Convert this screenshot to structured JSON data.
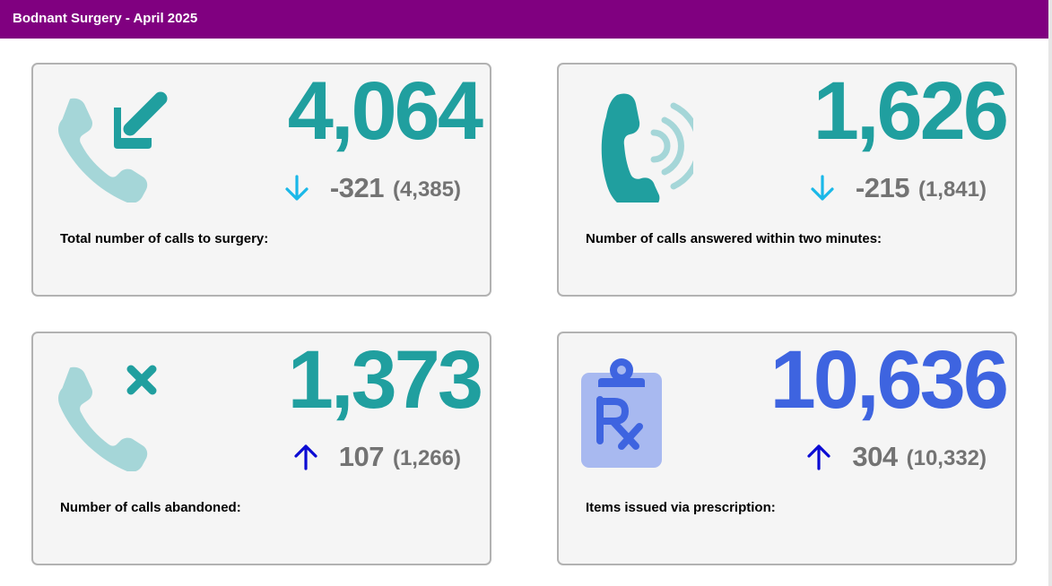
{
  "header": {
    "title": "Bodnant Surgery - April 2025",
    "background": "#800080"
  },
  "colors": {
    "teal": "#209f9f",
    "teal_light": "#a5d6d8",
    "blue": "#3e64e0",
    "blue_light": "#a8b9f0",
    "arrow_down": "#1ab8e8",
    "arrow_up": "#0b0bd3",
    "delta_text": "#737373"
  },
  "cards": [
    {
      "value": "4,064",
      "change": "-321",
      "previous": "(4,385)",
      "direction": "down",
      "icon": "phone-incoming-icon",
      "label": "Total number of calls to surgery:"
    },
    {
      "value": "1,626",
      "change": "-215",
      "previous": "(1,841)",
      "direction": "down",
      "icon": "phone-ringing-icon",
      "label": "Number of calls answered within two minutes:"
    },
    {
      "value": "1,373",
      "change": "107",
      "previous": "(1,266)",
      "direction": "up",
      "icon": "phone-missed-icon",
      "label": "Number of calls abandoned:"
    },
    {
      "value": "10,636",
      "change": "304",
      "previous": "(10,332)",
      "direction": "up",
      "icon": "prescription-clipboard-icon",
      "label": "Items issued via prescription:"
    }
  ]
}
